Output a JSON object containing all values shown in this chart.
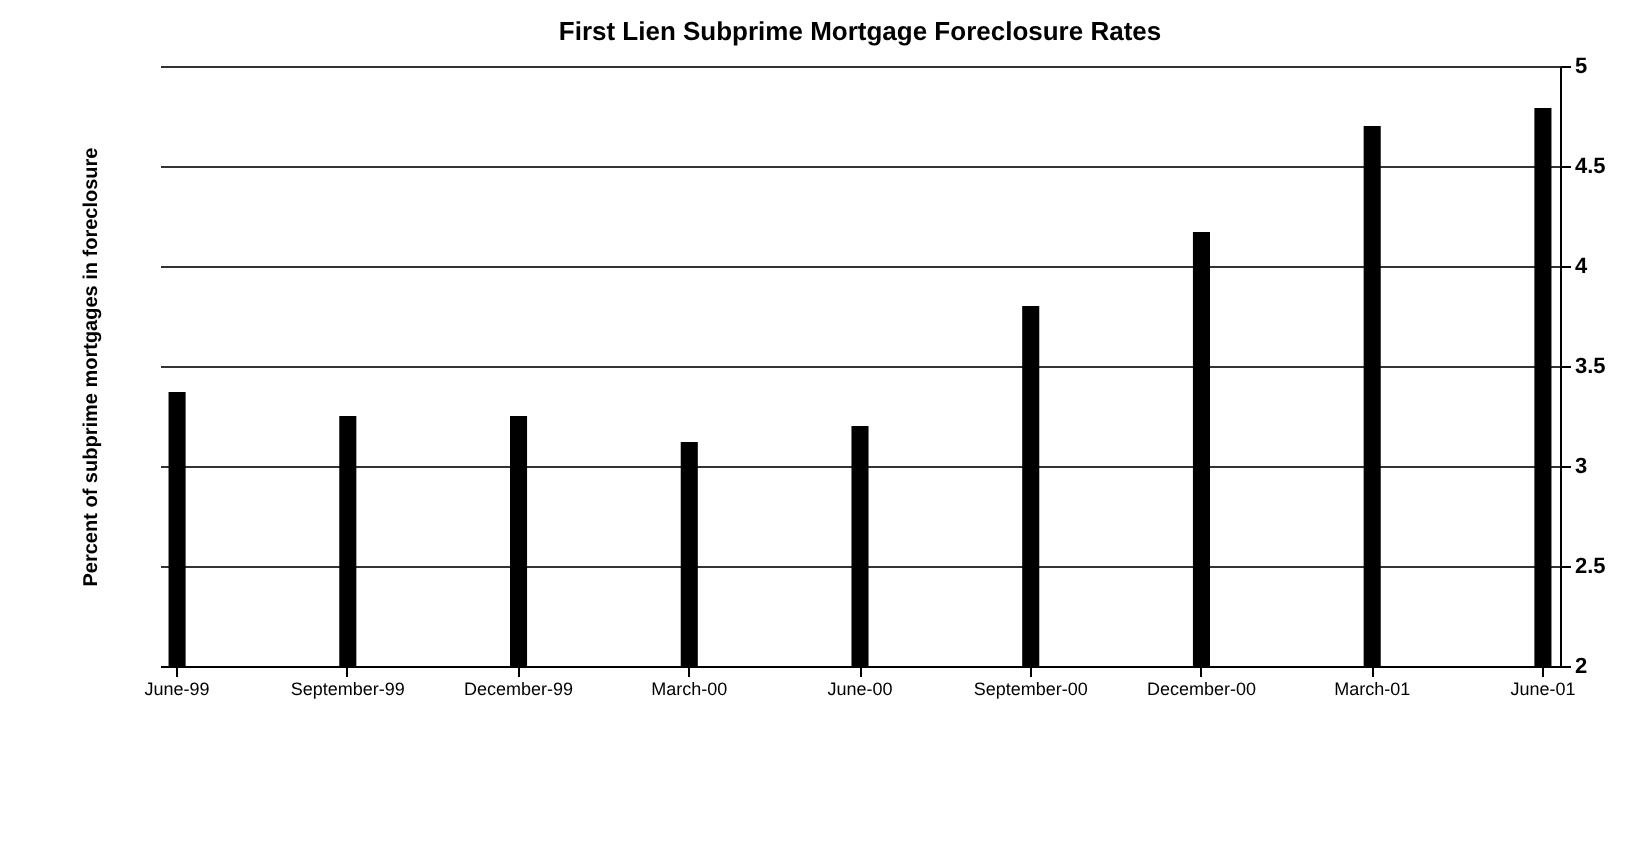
{
  "chart_data": {
    "type": "bar",
    "title": "First Lien Subprime Mortgage Foreclosure Rates",
    "ylabel": "Percent of subprime mortgages in foreclosure",
    "categories": [
      "June-99",
      "September-99",
      "December-99",
      "March-00",
      "June-00",
      "September-00",
      "December-00",
      "March-01",
      "June-01"
    ],
    "values": [
      3.37,
      3.25,
      3.25,
      3.12,
      3.2,
      3.8,
      4.17,
      4.7,
      4.79
    ],
    "color": "#000000",
    "ylim": [
      2,
      5
    ],
    "yticks": [
      2,
      2.5,
      3,
      3.5,
      4,
      4.5,
      5
    ],
    "grid": "y"
  }
}
